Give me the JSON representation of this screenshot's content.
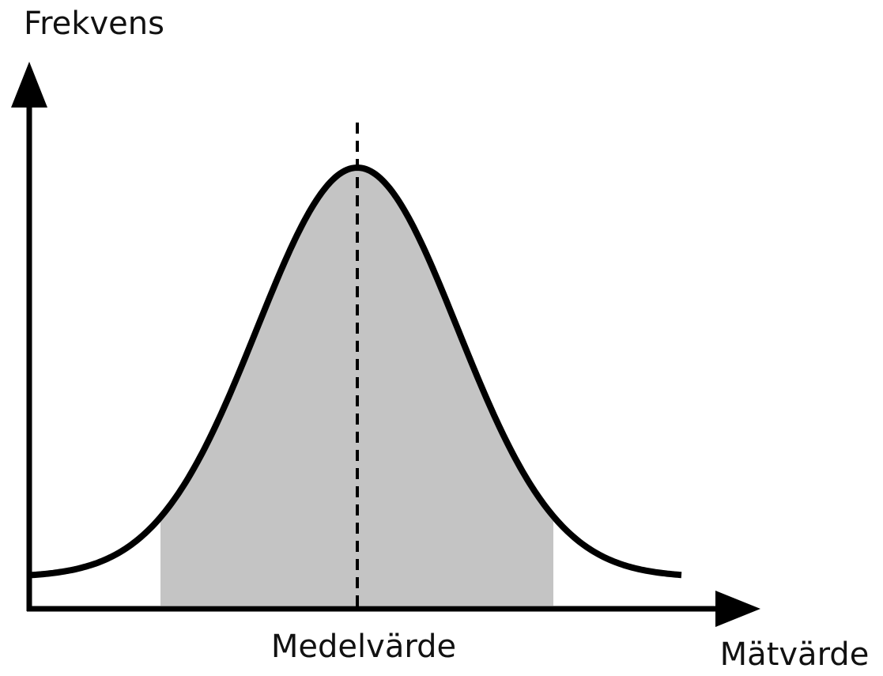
{
  "y_axis_label": "Frekvens",
  "x_axis_label": "Mätvärde",
  "mean_label": "Medelvärde"
}
